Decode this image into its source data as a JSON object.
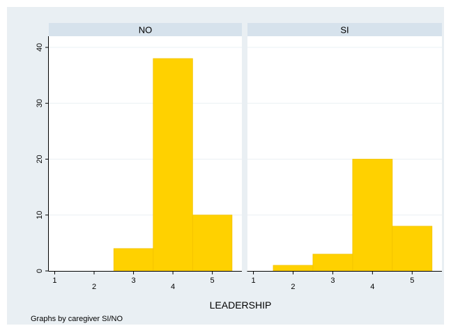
{
  "chart_data": {
    "type": "bar",
    "title": "",
    "xlabel": "LEADERSHIP",
    "ylabel": "",
    "note": "Graphs by caregiver SI/NO",
    "ylim": [
      0,
      42
    ],
    "yticks": [
      0,
      10,
      20,
      30,
      40
    ],
    "xlim": [
      0.85,
      5.75
    ],
    "xticks": [
      1,
      2,
      3,
      4,
      5
    ],
    "grid": true,
    "colors": {
      "background": "#e9eff3",
      "plot": "#ffffff",
      "strip": "#d6e2ec",
      "bar": "#ffd100",
      "bar_edge": "#f2c200",
      "axis": "#000000",
      "grid": "#eaf0f4"
    },
    "panels": [
      {
        "label": "NO",
        "bins": [
          {
            "from": 2.5,
            "to": 3.5,
            "value": 4
          },
          {
            "from": 3.5,
            "to": 4.5,
            "value": 38
          },
          {
            "from": 4.5,
            "to": 5.5,
            "value": 10
          }
        ]
      },
      {
        "label": "SI",
        "bins": [
          {
            "from": 1.5,
            "to": 2.5,
            "value": 1
          },
          {
            "from": 2.5,
            "to": 3.5,
            "value": 3
          },
          {
            "from": 3.5,
            "to": 4.5,
            "value": 20
          },
          {
            "from": 4.5,
            "to": 5.5,
            "value": 8
          }
        ]
      }
    ]
  }
}
